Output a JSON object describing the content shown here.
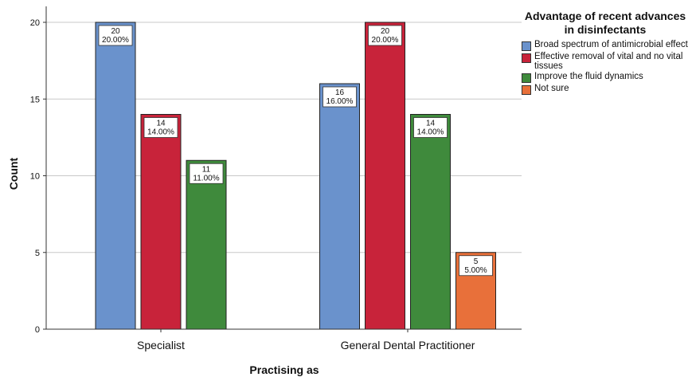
{
  "chart_data": {
    "type": "bar",
    "title": "",
    "xlabel": "Practising as",
    "ylabel": "Count",
    "ylim": [
      0,
      22
    ],
    "yticks": [
      0,
      5,
      10,
      15,
      20
    ],
    "grid": true,
    "legend_placement": "right",
    "legend_title": "Advantage of recent advances in disinfectants",
    "categories": [
      "Specialist",
      "General Dental Practitioner"
    ],
    "series": [
      {
        "name": "Broad spectrum of antimicrobial effect",
        "color": "#6a92cc",
        "values": [
          20,
          16
        ],
        "labels": [
          "20\n20.00%",
          "16\n16.00%"
        ]
      },
      {
        "name": "Effective removal of vital and no vital tissues",
        "color": "#c8233a",
        "values": [
          14,
          20
        ],
        "labels": [
          "14\n14.00%",
          "20\n20.00%"
        ]
      },
      {
        "name": "Improve the fluid dynamics",
        "color": "#3f8a3c",
        "values": [
          11,
          14
        ],
        "labels": [
          "11\n11.00%",
          "14\n14.00%"
        ]
      },
      {
        "name": "Not sure",
        "color": "#e8703a",
        "values": [
          null,
          5
        ],
        "labels": [
          null,
          "5\n5.00%"
        ]
      }
    ]
  }
}
